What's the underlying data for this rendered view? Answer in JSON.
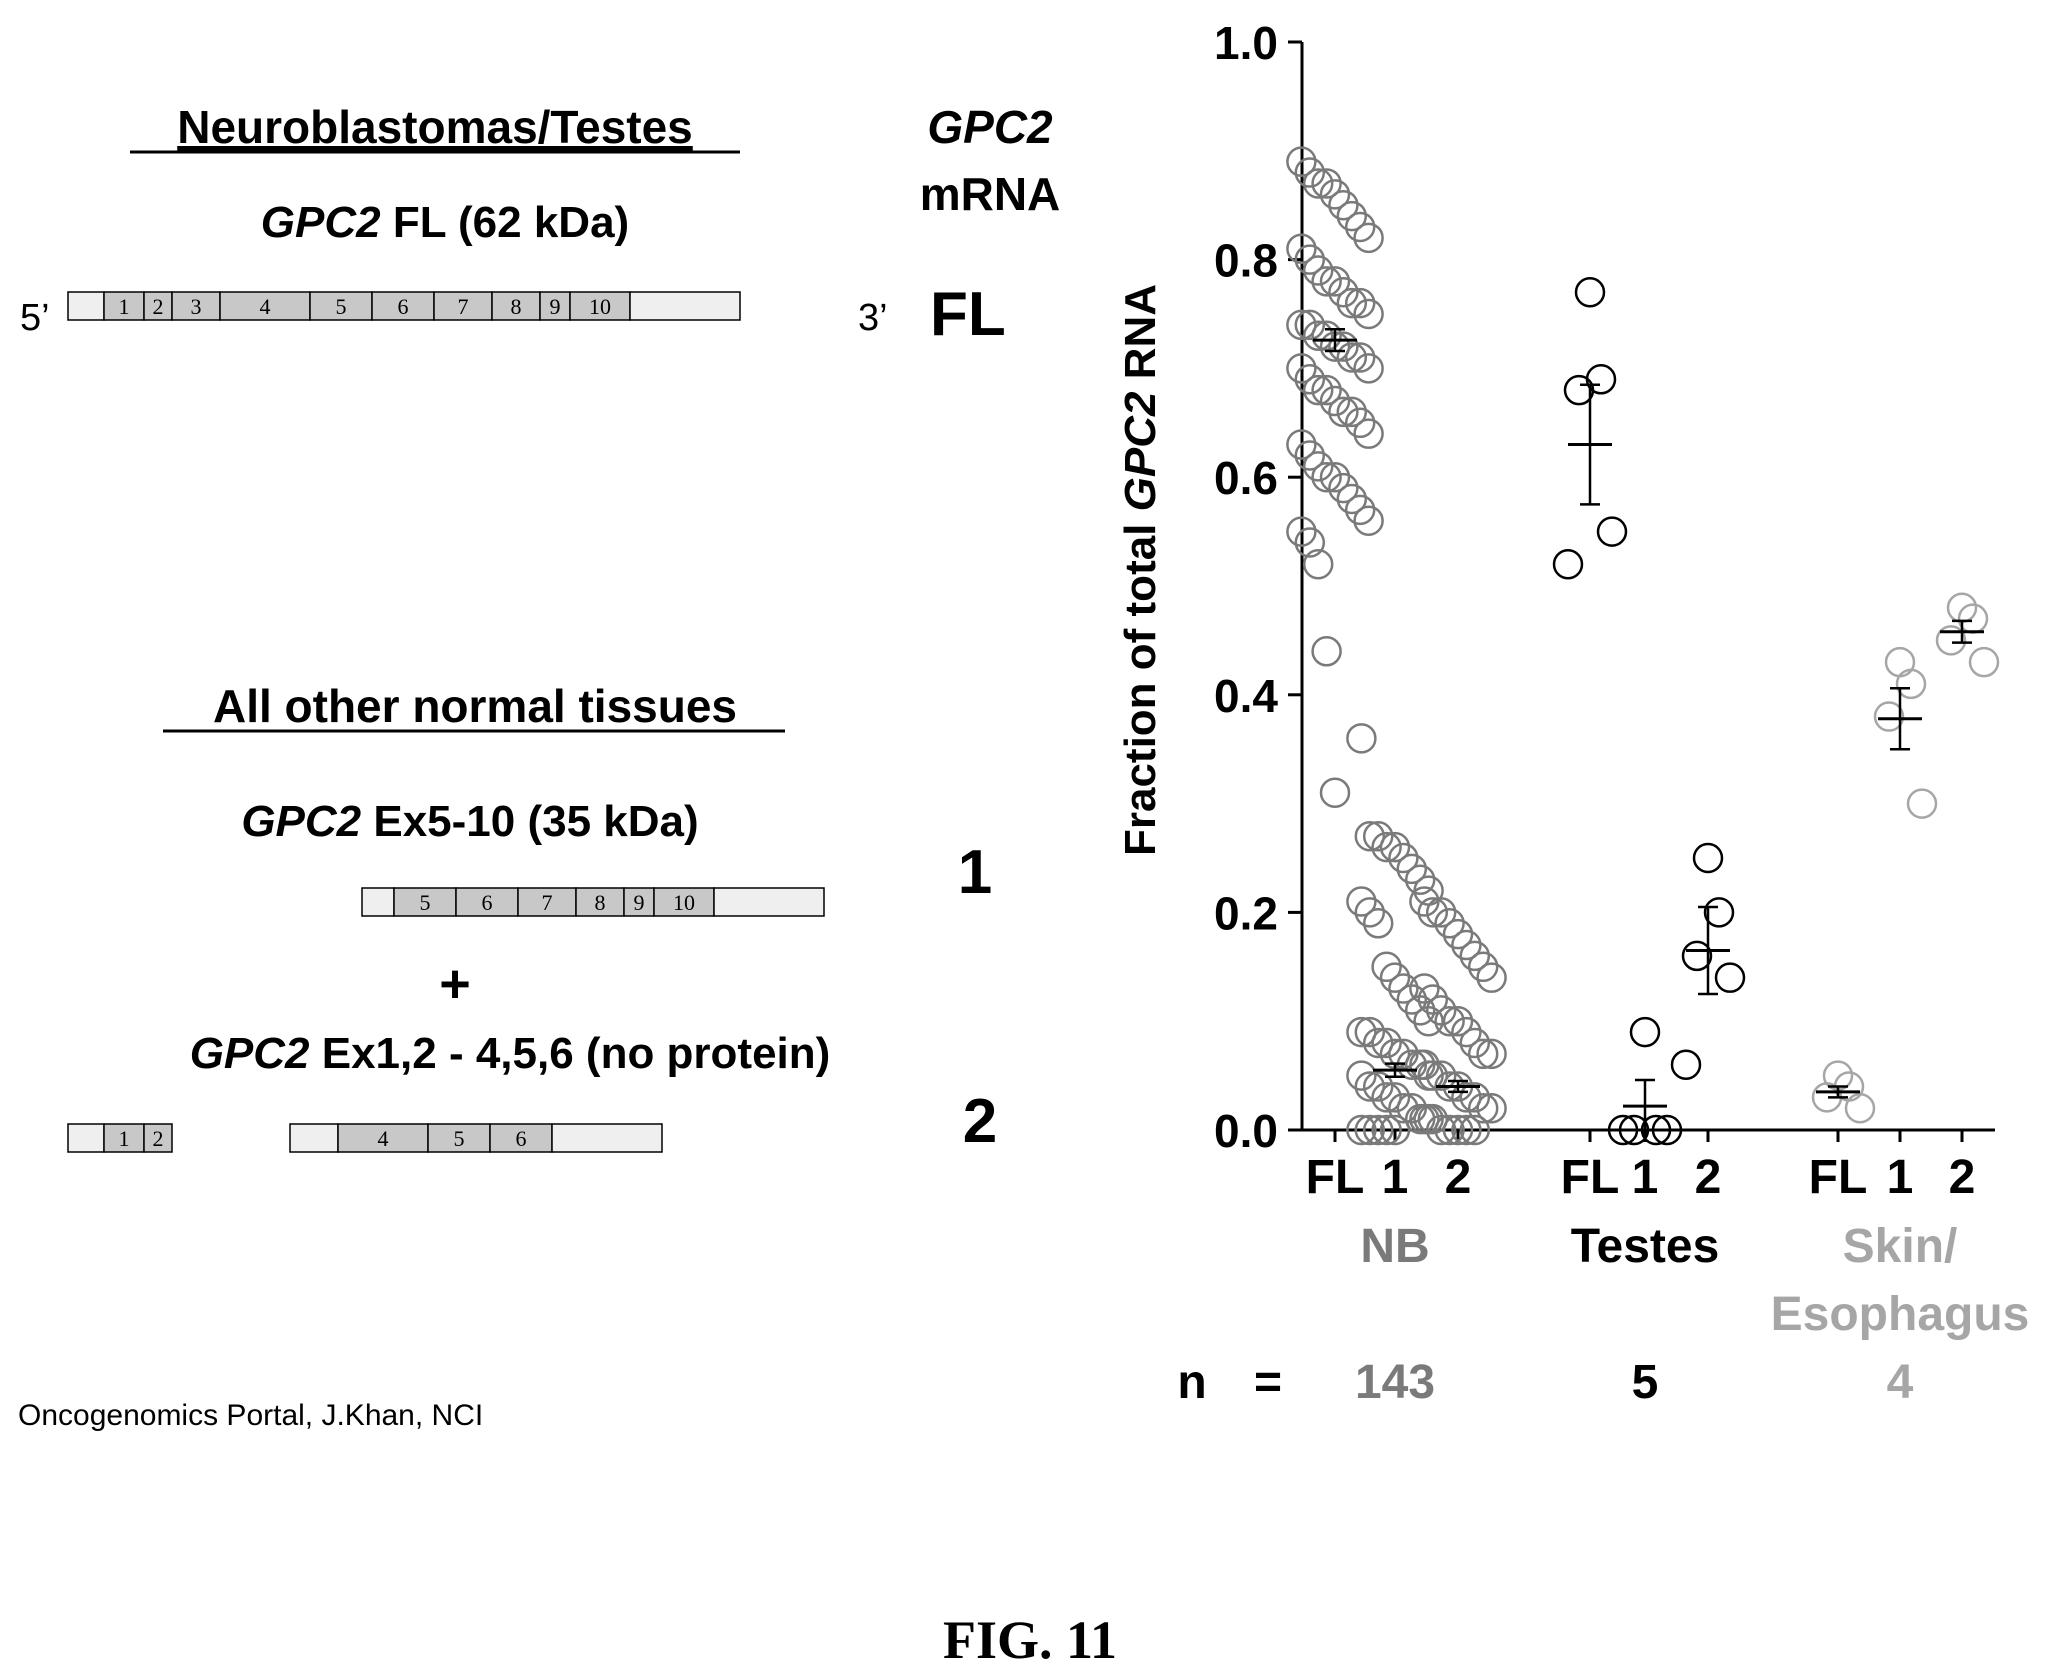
{
  "diagram": {
    "header1": "Neuroblastomas/Testes",
    "col_head_italic": "GPC2",
    "col_head_2": "mRNA",
    "fl_title_italic": "GPC2",
    "fl_title_rest": " FL (62 kDa)",
    "five_prime": "5’",
    "three_prime": "3’",
    "row_fl": "FL",
    "fl_exons": [
      "1",
      "2",
      "3",
      "4",
      "5",
      "6",
      "7",
      "8",
      "9",
      "10"
    ],
    "header2": "All other normal tissues",
    "iso1_title_italic": "GPC2",
    "iso1_title_rest": " Ex5-10 (35 kDa)",
    "row_1": "1",
    "iso1_exons": [
      "5",
      "6",
      "7",
      "8",
      "9",
      "10"
    ],
    "plus": "+",
    "iso2_title_italic": "GPC2",
    "iso2_title_rest": " Ex1,2 - 4,5,6 (no protein)",
    "row_2": "2",
    "iso2_exons_a": [
      "1",
      "2"
    ],
    "iso2_exons_b": [
      "4",
      "5",
      "6"
    ],
    "source": "Oncogenomics Portal, J.Khan, NCI"
  },
  "figure_label": "FIG. 11",
  "chart_data": {
    "type": "scatter",
    "ylabel_prefix": "Fraction of total ",
    "ylabel_italic": "GPC2",
    "ylabel_suffix": " RNA",
    "ylim": [
      0,
      1.0
    ],
    "yticks": [
      "0.0",
      "0.2",
      "0.4",
      "0.6",
      "0.8",
      "1.0"
    ],
    "ytick_values": [
      0,
      0.2,
      0.4,
      0.6,
      0.8,
      1.0
    ],
    "n_label": "n",
    "n_eq": "=",
    "colors": {
      "gray": "#7a7a7a",
      "black": "#000000",
      "light": "#a6a6a6"
    },
    "groups": [
      {
        "name": "NB",
        "n": "143",
        "color": "gray",
        "series": [
          {
            "label": "FL",
            "mean": 0.726,
            "sem": 0.01,
            "values": [
              0.89,
              0.88,
              0.87,
              0.87,
              0.86,
              0.85,
              0.84,
              0.83,
              0.82,
              0.81,
              0.8,
              0.79,
              0.78,
              0.78,
              0.77,
              0.76,
              0.76,
              0.75,
              0.74,
              0.74,
              0.73,
              0.73,
              0.72,
              0.72,
              0.71,
              0.71,
              0.7,
              0.7,
              0.69,
              0.68,
              0.68,
              0.67,
              0.66,
              0.66,
              0.65,
              0.64,
              0.63,
              0.62,
              0.61,
              0.6,
              0.6,
              0.59,
              0.58,
              0.57,
              0.56,
              0.55,
              0.54,
              0.52,
              0.44,
              0.31
            ]
          },
          {
            "label": "1",
            "mean": 0.055,
            "sem": 0.006,
            "values": [
              0.36,
              0.27,
              0.27,
              0.26,
              0.26,
              0.25,
              0.24,
              0.23,
              0.22,
              0.21,
              0.2,
              0.19,
              0.15,
              0.14,
              0.13,
              0.12,
              0.11,
              0.1,
              0.09,
              0.09,
              0.08,
              0.08,
              0.07,
              0.07,
              0.06,
              0.06,
              0.05,
              0.05,
              0.04,
              0.04,
              0.03,
              0.03,
              0.02,
              0.02,
              0.01,
              0.01,
              0,
              0,
              0,
              0,
              0
            ]
          },
          {
            "label": "2",
            "mean": 0.04,
            "sem": 0.005,
            "values": [
              0.21,
              0.2,
              0.2,
              0.19,
              0.18,
              0.17,
              0.16,
              0.15,
              0.14,
              0.13,
              0.12,
              0.11,
              0.1,
              0.1,
              0.09,
              0.08,
              0.07,
              0.07,
              0.06,
              0.05,
              0.05,
              0.04,
              0.04,
              0.03,
              0.03,
              0.02,
              0.02,
              0.01,
              0.01,
              0,
              0,
              0,
              0,
              0
            ]
          }
        ]
      },
      {
        "name": "Testes",
        "n": "5",
        "color": "black",
        "series": [
          {
            "label": "FL",
            "mean": 0.63,
            "sem": 0.055,
            "values": [
              0.77,
              0.69,
              0.68,
              0.55,
              0.52
            ]
          },
          {
            "label": "1",
            "mean": 0.022,
            "sem": 0.024,
            "values": [
              0.09,
              0,
              0,
              0,
              0
            ]
          },
          {
            "label": "2",
            "mean": 0.165,
            "sem": 0.04,
            "values": [
              0.25,
              0.2,
              0.16,
              0.14,
              0.06
            ]
          }
        ]
      },
      {
        "name": "Skin/\nEsophagus",
        "name_line1": "Skin/",
        "name_line2": "Esophagus",
        "n": "4",
        "color": "light",
        "series": [
          {
            "label": "FL",
            "mean": 0.035,
            "sem": 0.005,
            "values": [
              0.05,
              0.04,
              0.03,
              0.02
            ]
          },
          {
            "label": "1",
            "mean": 0.378,
            "sem": 0.028,
            "values": [
              0.43,
              0.41,
              0.38,
              0.3
            ]
          },
          {
            "label": "2",
            "mean": 0.458,
            "sem": 0.01,
            "values": [
              0.48,
              0.47,
              0.45,
              0.43
            ]
          }
        ]
      }
    ]
  }
}
